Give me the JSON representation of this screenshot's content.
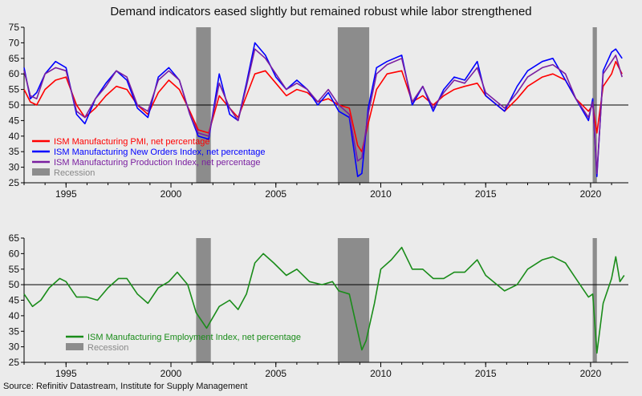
{
  "title": "Demand indicators eased slightly but remained robust while labor strengthened",
  "source": "Source: Refinitiv Datastream, Institute for Supply Management",
  "colors": {
    "background": "#ebebeb",
    "recession": "#8c8c8c",
    "pmi": "#ff0000",
    "new_orders": "#0000ff",
    "production": "#7a1fa0",
    "employment": "#1a8c1a",
    "reference_line": "#000000"
  },
  "chart_data": [
    {
      "type": "line",
      "x_axis": {
        "type": "year",
        "range": [
          1993,
          2021.8
        ],
        "tick_labels": [
          "1995",
          "2000",
          "2005",
          "2010",
          "2015",
          "2020"
        ]
      },
      "y_axis": {
        "range": [
          25,
          75
        ],
        "tick_labels": [
          "25",
          "30",
          "35",
          "40",
          "45",
          "50",
          "55",
          "60",
          "65",
          "70",
          "75"
        ]
      },
      "reference_line": 50,
      "grid": false,
      "legend_position": "bottom-left",
      "recessions": [
        [
          2001.2,
          2001.9
        ],
        [
          2007.95,
          2009.45
        ],
        [
          2020.1,
          2020.3
        ]
      ],
      "recession_label": "Recession",
      "series": [
        {
          "name": "ISM Manufacturing PMI, net percentage",
          "color_key": "pmi",
          "points": [
            [
              1993.0,
              55
            ],
            [
              1993.3,
              51
            ],
            [
              1993.6,
              50
            ],
            [
              1994.0,
              55
            ],
            [
              1994.5,
              58
            ],
            [
              1995.0,
              59
            ],
            [
              1995.5,
              50
            ],
            [
              1995.9,
              46
            ],
            [
              1996.4,
              49
            ],
            [
              1996.9,
              53
            ],
            [
              1997.4,
              56
            ],
            [
              1997.9,
              55
            ],
            [
              1998.4,
              50
            ],
            [
              1998.9,
              47
            ],
            [
              1999.4,
              54
            ],
            [
              1999.9,
              58
            ],
            [
              2000.4,
              55
            ],
            [
              2000.9,
              48
            ],
            [
              2001.3,
              42
            ],
            [
              2001.8,
              41
            ],
            [
              2002.3,
              53
            ],
            [
              2002.8,
              49
            ],
            [
              2003.2,
              46
            ],
            [
              2003.6,
              53
            ],
            [
              2004.0,
              60
            ],
            [
              2004.5,
              61
            ],
            [
              2005.0,
              57
            ],
            [
              2005.5,
              53
            ],
            [
              2006.0,
              55
            ],
            [
              2006.5,
              54
            ],
            [
              2007.0,
              51
            ],
            [
              2007.5,
              52
            ],
            [
              2008.0,
              50
            ],
            [
              2008.5,
              49
            ],
            [
              2008.9,
              37
            ],
            [
              2009.1,
              35
            ],
            [
              2009.4,
              44
            ],
            [
              2009.8,
              55
            ],
            [
              2010.3,
              60
            ],
            [
              2011.0,
              61
            ],
            [
              2011.5,
              51
            ],
            [
              2012.0,
              53
            ],
            [
              2012.5,
              50
            ],
            [
              2013.0,
              53
            ],
            [
              2013.5,
              55
            ],
            [
              2014.0,
              56
            ],
            [
              2014.6,
              57
            ],
            [
              2015.0,
              53
            ],
            [
              2015.9,
              48
            ],
            [
              2016.5,
              52
            ],
            [
              2017.0,
              56
            ],
            [
              2017.7,
              59
            ],
            [
              2018.2,
              60
            ],
            [
              2018.8,
              58
            ],
            [
              2019.3,
              52
            ],
            [
              2019.9,
              48
            ],
            [
              2020.1,
              50
            ],
            [
              2020.3,
              41
            ],
            [
              2020.6,
              56
            ],
            [
              2021.0,
              60
            ],
            [
              2021.2,
              64
            ],
            [
              2021.5,
              60
            ]
          ]
        },
        {
          "name": "ISM Manufacturing New Orders Index, net percentage",
          "color_key": "new_orders",
          "points": [
            [
              1993.0,
              62
            ],
            [
              1993.3,
              52
            ],
            [
              1993.6,
              54
            ],
            [
              1994.0,
              60
            ],
            [
              1994.5,
              64
            ],
            [
              1995.0,
              62
            ],
            [
              1995.5,
              47
            ],
            [
              1995.9,
              44
            ],
            [
              1996.4,
              52
            ],
            [
              1996.9,
              57
            ],
            [
              1997.4,
              61
            ],
            [
              1997.9,
              58
            ],
            [
              1998.4,
              49
            ],
            [
              1998.9,
              46
            ],
            [
              1999.4,
              59
            ],
            [
              1999.9,
              62
            ],
            [
              2000.4,
              58
            ],
            [
              2000.9,
              47
            ],
            [
              2001.3,
              40
            ],
            [
              2001.8,
              39
            ],
            [
              2002.3,
              60
            ],
            [
              2002.8,
              47
            ],
            [
              2003.2,
              45
            ],
            [
              2003.6,
              57
            ],
            [
              2004.0,
              70
            ],
            [
              2004.5,
              66
            ],
            [
              2005.0,
              59
            ],
            [
              2005.5,
              55
            ],
            [
              2006.0,
              58
            ],
            [
              2006.5,
              55
            ],
            [
              2007.0,
              50
            ],
            [
              2007.5,
              54
            ],
            [
              2008.0,
              48
            ],
            [
              2008.5,
              46
            ],
            [
              2008.9,
              27
            ],
            [
              2009.1,
              28
            ],
            [
              2009.4,
              49
            ],
            [
              2009.8,
              62
            ],
            [
              2010.3,
              64
            ],
            [
              2011.0,
              66
            ],
            [
              2011.5,
              50
            ],
            [
              2012.0,
              56
            ],
            [
              2012.5,
              48
            ],
            [
              2013.0,
              55
            ],
            [
              2013.5,
              59
            ],
            [
              2014.0,
              58
            ],
            [
              2014.6,
              64
            ],
            [
              2015.0,
              53
            ],
            [
              2015.9,
              48
            ],
            [
              2016.5,
              56
            ],
            [
              2017.0,
              61
            ],
            [
              2017.7,
              64
            ],
            [
              2018.2,
              65
            ],
            [
              2018.8,
              58
            ],
            [
              2019.3,
              52
            ],
            [
              2019.9,
              45
            ],
            [
              2020.1,
              52
            ],
            [
              2020.3,
              27
            ],
            [
              2020.6,
              61
            ],
            [
              2021.0,
              67
            ],
            [
              2021.2,
              68
            ],
            [
              2021.5,
              65
            ]
          ]
        },
        {
          "name": "ISM Manufacturing Production Index, net percentage",
          "color_key": "production",
          "points": [
            [
              1993.0,
              61
            ],
            [
              1993.3,
              53
            ],
            [
              1993.6,
              52
            ],
            [
              1994.0,
              60
            ],
            [
              1994.5,
              62
            ],
            [
              1995.0,
              61
            ],
            [
              1995.5,
              48
            ],
            [
              1995.9,
              46
            ],
            [
              1996.4,
              52
            ],
            [
              1996.9,
              56
            ],
            [
              1997.4,
              61
            ],
            [
              1997.9,
              59
            ],
            [
              1998.4,
              50
            ],
            [
              1998.9,
              48
            ],
            [
              1999.4,
              58
            ],
            [
              1999.9,
              61
            ],
            [
              2000.4,
              58
            ],
            [
              2000.9,
              47
            ],
            [
              2001.3,
              41
            ],
            [
              2001.8,
              40
            ],
            [
              2002.3,
              57
            ],
            [
              2002.8,
              49
            ],
            [
              2003.2,
              45
            ],
            [
              2003.6,
              56
            ],
            [
              2004.0,
              68
            ],
            [
              2004.5,
              65
            ],
            [
              2005.0,
              60
            ],
            [
              2005.5,
              55
            ],
            [
              2006.0,
              57
            ],
            [
              2006.5,
              55
            ],
            [
              2007.0,
              51
            ],
            [
              2007.5,
              55
            ],
            [
              2008.0,
              50
            ],
            [
              2008.5,
              47
            ],
            [
              2008.9,
              32
            ],
            [
              2009.1,
              33
            ],
            [
              2009.4,
              47
            ],
            [
              2009.8,
              60
            ],
            [
              2010.3,
              63
            ],
            [
              2011.0,
              65
            ],
            [
              2011.5,
              51
            ],
            [
              2012.0,
              56
            ],
            [
              2012.5,
              49
            ],
            [
              2013.0,
              54
            ],
            [
              2013.5,
              58
            ],
            [
              2014.0,
              57
            ],
            [
              2014.6,
              62
            ],
            [
              2015.0,
              54
            ],
            [
              2015.9,
              49
            ],
            [
              2016.5,
              54
            ],
            [
              2017.0,
              59
            ],
            [
              2017.7,
              62
            ],
            [
              2018.2,
              63
            ],
            [
              2018.8,
              60
            ],
            [
              2019.3,
              52
            ],
            [
              2019.9,
              46
            ],
            [
              2020.1,
              51
            ],
            [
              2020.3,
              28
            ],
            [
              2020.6,
              60
            ],
            [
              2021.0,
              64
            ],
            [
              2021.2,
              66
            ],
            [
              2021.5,
              59
            ]
          ]
        }
      ]
    },
    {
      "type": "line",
      "x_axis": {
        "type": "year",
        "range": [
          1993,
          2021.8
        ],
        "tick_labels": [
          "1995",
          "2000",
          "2005",
          "2010",
          "2015",
          "2020"
        ]
      },
      "y_axis": {
        "range": [
          25,
          65
        ],
        "tick_labels": [
          "25",
          "30",
          "35",
          "40",
          "45",
          "50",
          "55",
          "60",
          "65"
        ]
      },
      "reference_line": 50,
      "grid": false,
      "legend_position": "bottom-left",
      "recessions": [
        [
          2001.2,
          2001.9
        ],
        [
          2007.95,
          2009.45
        ],
        [
          2020.1,
          2020.3
        ]
      ],
      "recession_label": "Recession",
      "series": [
        {
          "name": "ISM Manufacturing Employment Index, net percentage",
          "color_key": "employment",
          "points": [
            [
              1993.0,
              47
            ],
            [
              1993.4,
              43
            ],
            [
              1993.8,
              45
            ],
            [
              1994.2,
              49
            ],
            [
              1994.7,
              52
            ],
            [
              1995.0,
              51
            ],
            [
              1995.5,
              46
            ],
            [
              1996.0,
              46
            ],
            [
              1996.5,
              45
            ],
            [
              1997.0,
              49
            ],
            [
              1997.5,
              52
            ],
            [
              1997.9,
              52
            ],
            [
              1998.4,
              47
            ],
            [
              1998.9,
              44
            ],
            [
              1999.4,
              49
            ],
            [
              1999.9,
              51
            ],
            [
              2000.3,
              54
            ],
            [
              2000.8,
              50
            ],
            [
              2001.2,
              41
            ],
            [
              2001.7,
              36
            ],
            [
              2002.3,
              43
            ],
            [
              2002.8,
              45
            ],
            [
              2003.2,
              42
            ],
            [
              2003.6,
              47
            ],
            [
              2004.0,
              57
            ],
            [
              2004.4,
              60
            ],
            [
              2004.9,
              57
            ],
            [
              2005.5,
              53
            ],
            [
              2006.0,
              55
            ],
            [
              2006.6,
              51
            ],
            [
              2007.2,
              50
            ],
            [
              2007.7,
              51
            ],
            [
              2008.0,
              48
            ],
            [
              2008.5,
              47
            ],
            [
              2008.9,
              35
            ],
            [
              2009.1,
              29
            ],
            [
              2009.3,
              32
            ],
            [
              2009.7,
              44
            ],
            [
              2010.0,
              55
            ],
            [
              2010.5,
              58
            ],
            [
              2011.0,
              62
            ],
            [
              2011.5,
              55
            ],
            [
              2012.0,
              55
            ],
            [
              2012.5,
              52
            ],
            [
              2013.0,
              52
            ],
            [
              2013.5,
              54
            ],
            [
              2014.0,
              54
            ],
            [
              2014.6,
              58
            ],
            [
              2015.0,
              53
            ],
            [
              2015.9,
              48
            ],
            [
              2016.5,
              50
            ],
            [
              2017.0,
              55
            ],
            [
              2017.7,
              58
            ],
            [
              2018.2,
              59
            ],
            [
              2018.8,
              57
            ],
            [
              2019.3,
              52
            ],
            [
              2019.9,
              46
            ],
            [
              2020.1,
              47
            ],
            [
              2020.3,
              28
            ],
            [
              2020.6,
              44
            ],
            [
              2021.0,
              52
            ],
            [
              2021.2,
              59
            ],
            [
              2021.4,
              51
            ],
            [
              2021.6,
              53
            ]
          ]
        }
      ]
    }
  ]
}
